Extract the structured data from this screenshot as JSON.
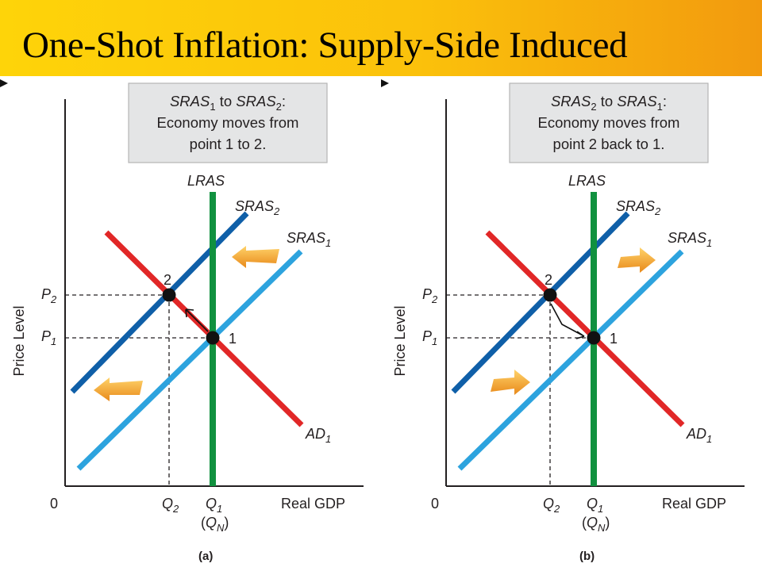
{
  "title": "One-Shot Inflation: Supply-Side Induced",
  "colors": {
    "title_bg_start": "#fed409",
    "title_bg_end": "#f29a0e",
    "lras": "#11913f",
    "sras_dark": "#0f5fa8",
    "sras_light": "#2da3de",
    "ad": "#e12727",
    "arrow_orange": "#f5a623",
    "box_bg": "#e4e5e6"
  },
  "panels": [
    {
      "tag": "(a)",
      "box": {
        "line1": {
          "a": "SRAS",
          "a_sub": "1",
          "mid": " to ",
          "b": "SRAS",
          "b_sub": "2",
          "end": ":"
        },
        "line2": "Economy moves from",
        "line3": "point 1 to 2."
      },
      "y_axis_label": "Price Level",
      "x_axis_label": "Real GDP",
      "origin_label": "0",
      "p2": {
        "name": "P",
        "sub": "2"
      },
      "p1": {
        "name": "P",
        "sub": "1"
      },
      "q2": {
        "name": "Q",
        "sub": "2"
      },
      "q1": {
        "name": "Q",
        "sub": "1"
      },
      "qn": {
        "open": "(",
        "name": "Q",
        "sub": "N",
        "close": ")"
      },
      "lras_label": "LRAS",
      "sras2": {
        "name": "SRAS",
        "sub": "2"
      },
      "sras1": {
        "name": "SRAS",
        "sub": "1"
      },
      "ad1": {
        "name": "AD",
        "sub": "1"
      },
      "point1_label": "1",
      "point2_label": "2",
      "shift_direction": "left",
      "movement": "1 to 2"
    },
    {
      "tag": "(b)",
      "box": {
        "line1": {
          "a": "SRAS",
          "a_sub": "2",
          "mid": " to ",
          "b": "SRAS",
          "b_sub": "1",
          "end": ":"
        },
        "line2": "Economy moves from",
        "line3": "point 2 back to 1."
      },
      "y_axis_label": "Price Level",
      "x_axis_label": "Real GDP",
      "origin_label": "0",
      "p2": {
        "name": "P",
        "sub": "2"
      },
      "p1": {
        "name": "P",
        "sub": "1"
      },
      "q2": {
        "name": "Q",
        "sub": "2"
      },
      "q1": {
        "name": "Q",
        "sub": "1"
      },
      "qn": {
        "open": "(",
        "name": "Q",
        "sub": "N",
        "close": ")"
      },
      "lras_label": "LRAS",
      "sras2": {
        "name": "SRAS",
        "sub": "2"
      },
      "sras1": {
        "name": "SRAS",
        "sub": "1"
      },
      "ad1": {
        "name": "AD",
        "sub": "1"
      },
      "point1_label": "1",
      "point2_label": "2",
      "shift_direction": "right",
      "movement": "2 to 1"
    }
  ]
}
